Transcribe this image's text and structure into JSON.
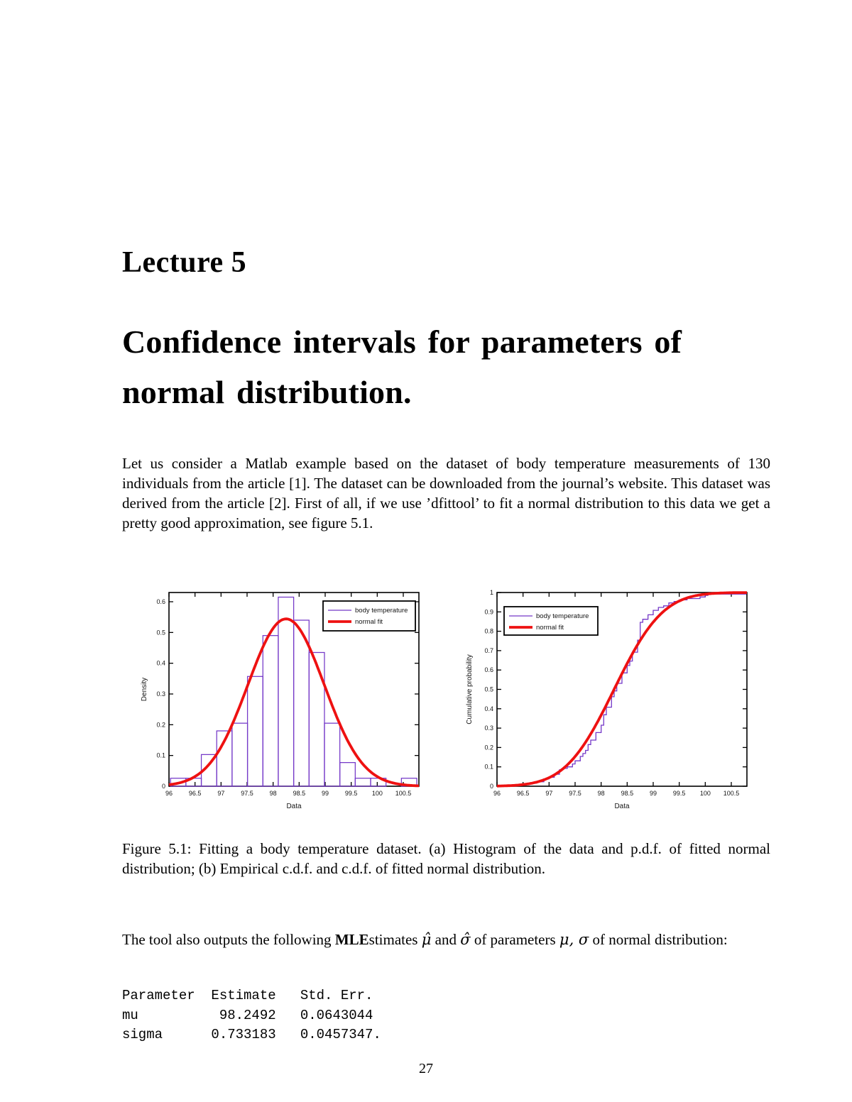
{
  "page": {
    "number": "27"
  },
  "chapter": {
    "kicker": "Lecture 5",
    "title": [
      "Confidence intervals for parameters of",
      "normal distribution."
    ]
  },
  "paragraphs": {
    "intro": "Let us consider a Matlab example based on the dataset of body temperature measurements of 130 individuals from the article [1]. The dataset can be downloaded from the journal’s website. This dataset was derived from the article [2]. First of all, if we use ’dfittool’ to fit a normal distribution to this data we get a pretty good approximation, see figure 5.1."
  },
  "caption": "Figure 5.1: Fitting a body temperature dataset. (a) Histogram of the data and p.d.f. of fitted normal distribution; (b) Empirical c.d.f. and c.d.f. of fitted normal distribution.",
  "mle": {
    "t1": "The tool also outputs the following ",
    "bold": "MLE",
    "t2": "stimates ",
    "mu_hat": "μ̂",
    "t3": " and ",
    "sigma_hat": "σ̂",
    "t4": " of parameters ",
    "params": "μ, σ",
    "t5": " of normal distribution:"
  },
  "code": {
    "lines": [
      "Parameter  Estimate   Std. Err.",
      "mu          98.2492   0.0643044",
      "sigma      0.733183   0.0457347."
    ]
  },
  "chart_data": [
    {
      "type": "bar",
      "panel": "a",
      "title": "",
      "xlabel": "Data",
      "ylabel": "Density",
      "xlim": [
        96,
        100.8
      ],
      "ylim": [
        0,
        0.63
      ],
      "xticks": [
        96,
        96.5,
        97,
        97.5,
        98,
        98.5,
        99,
        99.5,
        100,
        100.5
      ],
      "yticks": [
        0,
        0.1,
        0.2,
        0.3,
        0.4,
        0.5,
        0.6
      ],
      "bin_start": 96.03,
      "bin_width": 0.2956,
      "bar_heights": [
        0.026,
        0.026,
        0.103,
        0.18,
        0.205,
        0.357,
        0.49,
        0.615,
        0.54,
        0.435,
        0.205,
        0.077,
        0.026,
        0.026,
        0,
        0.026
      ],
      "normal_fit": {
        "mu": 98.2492,
        "sigma": 0.733183
      },
      "legend": [
        "body temperature",
        "normal fit"
      ],
      "legend_position": "upper-right",
      "grid": false,
      "colors": {
        "data": "#7438C8",
        "fit": "#EE1111"
      }
    },
    {
      "type": "line",
      "panel": "b",
      "title": "",
      "xlabel": "Data",
      "ylabel": "Cumulative probability",
      "xlim": [
        96,
        100.8
      ],
      "ylim": [
        0,
        1
      ],
      "xticks": [
        96,
        96.5,
        97,
        97.5,
        98,
        98.5,
        99,
        99.5,
        100,
        100.5
      ],
      "yticks": [
        0,
        0.1,
        0.2,
        0.3,
        0.4,
        0.5,
        0.6,
        0.7,
        0.8,
        0.9,
        1
      ],
      "ecdf_steps": [
        [
          96.3,
          0.008
        ],
        [
          96.6,
          0.015
        ],
        [
          96.75,
          0.023
        ],
        [
          96.9,
          0.038
        ],
        [
          97,
          0.046
        ],
        [
          97.1,
          0.062
        ],
        [
          97.2,
          0.085
        ],
        [
          97.25,
          0.092
        ],
        [
          97.35,
          0.1
        ],
        [
          97.45,
          0.115
        ],
        [
          97.5,
          0.131
        ],
        [
          97.6,
          0.154
        ],
        [
          97.65,
          0.169
        ],
        [
          97.7,
          0.185
        ],
        [
          97.75,
          0.215
        ],
        [
          97.8,
          0.238
        ],
        [
          97.9,
          0.277
        ],
        [
          98,
          0.315
        ],
        [
          98.05,
          0.369
        ],
        [
          98.1,
          0.408
        ],
        [
          98.2,
          0.462
        ],
        [
          98.25,
          0.492
        ],
        [
          98.3,
          0.531
        ],
        [
          98.4,
          0.585
        ],
        [
          98.5,
          0.623
        ],
        [
          98.55,
          0.646
        ],
        [
          98.6,
          0.692
        ],
        [
          98.7,
          0.754
        ],
        [
          98.75,
          0.846
        ],
        [
          98.8,
          0.862
        ],
        [
          98.9,
          0.885
        ],
        [
          99,
          0.908
        ],
        [
          99.1,
          0.923
        ],
        [
          99.2,
          0.931
        ],
        [
          99.3,
          0.946
        ],
        [
          99.4,
          0.954
        ],
        [
          99.5,
          0.962
        ],
        [
          99.65,
          0.969
        ],
        [
          99.9,
          0.977
        ],
        [
          100,
          0.985
        ],
        [
          100.05,
          0.992
        ],
        [
          100.78,
          1
        ]
      ],
      "normal_fit": {
        "mu": 98.2492,
        "sigma": 0.733183
      },
      "legend": [
        "body temperature",
        "normal fit"
      ],
      "legend_position": "upper-left",
      "grid": false,
      "colors": {
        "data": "#7438C8",
        "fit": "#EE1111"
      }
    }
  ]
}
